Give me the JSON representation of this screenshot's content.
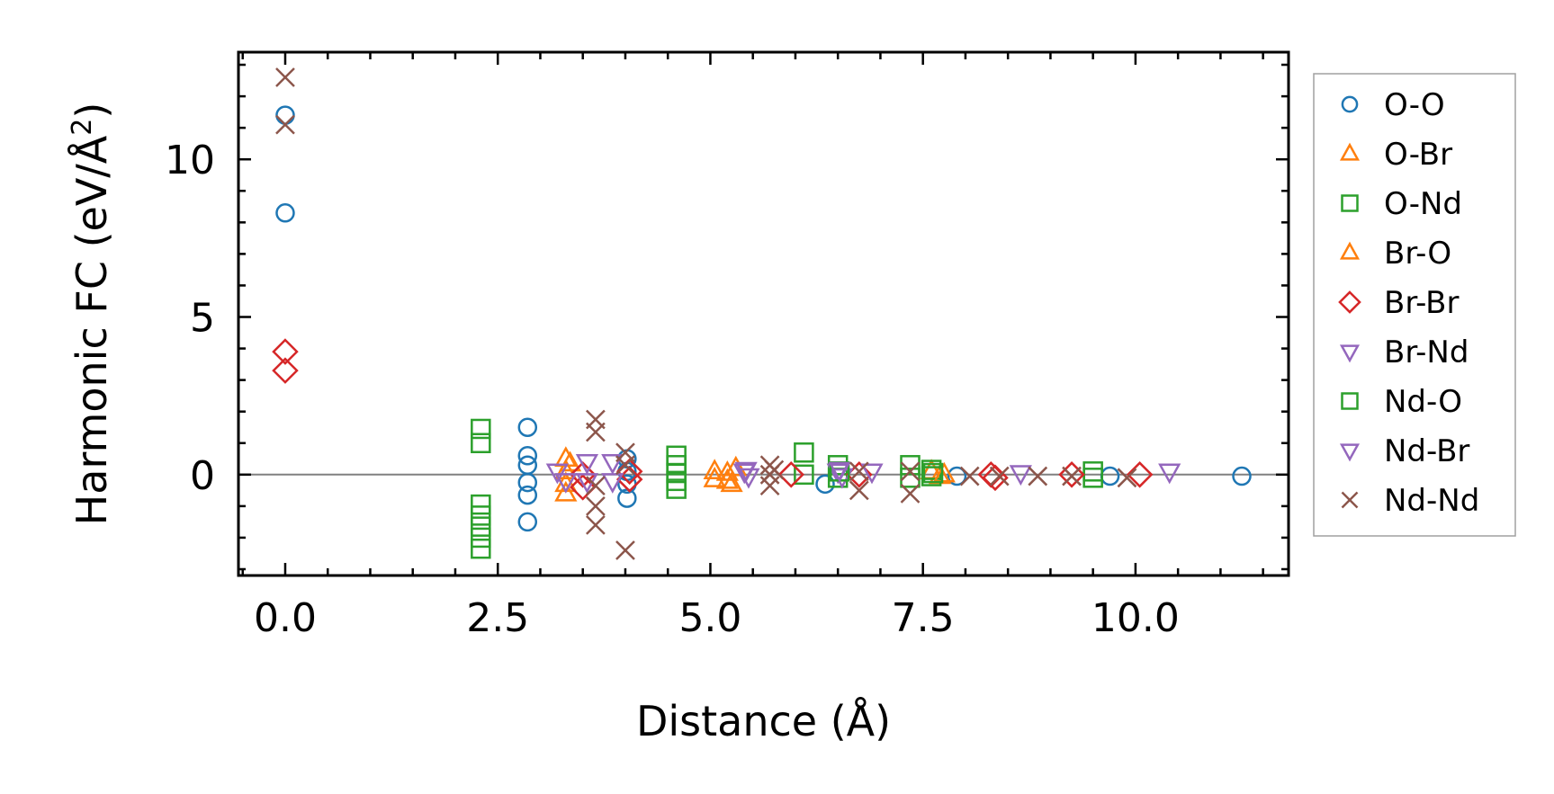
{
  "chart_data": {
    "type": "scatter",
    "xlabel": "Distance (Å)",
    "ylabel_main": "Harmonic FC (eV/Å",
    "ylabel_sup": "2",
    "ylabel_close": ")",
    "xlim": [
      -0.55,
      11.8
    ],
    "ylim": [
      -3.2,
      13.4
    ],
    "xticks": [
      0.0,
      2.5,
      5.0,
      7.5,
      10.0
    ],
    "xtick_labels": [
      "0.0",
      "2.5",
      "5.0",
      "7.5",
      "10.0"
    ],
    "yticks": [
      0,
      5,
      10
    ],
    "ytick_labels": [
      "0",
      "5",
      "10"
    ],
    "zero_line": true,
    "grid": false,
    "legend_position": "outside-right",
    "series": [
      {
        "name": "O-O",
        "marker": "circle",
        "color": "#1f77b4",
        "points": [
          [
            0.0,
            11.4
          ],
          [
            0.0,
            8.3
          ],
          [
            2.85,
            1.5
          ],
          [
            2.85,
            0.6
          ],
          [
            2.85,
            0.3
          ],
          [
            2.85,
            -0.25
          ],
          [
            2.85,
            -0.65
          ],
          [
            2.85,
            -1.5
          ],
          [
            4.02,
            0.5
          ],
          [
            4.02,
            0.1
          ],
          [
            4.02,
            -0.3
          ],
          [
            4.02,
            -0.75
          ],
          [
            6.35,
            -0.3
          ],
          [
            7.9,
            -0.05
          ],
          [
            9.7,
            -0.05
          ],
          [
            11.25,
            -0.05
          ]
        ]
      },
      {
        "name": "O-Br",
        "marker": "triangle-up",
        "color": "#ff7f0e",
        "points": [
          [
            3.3,
            0.5
          ],
          [
            3.3,
            0.1
          ],
          [
            3.3,
            -0.3
          ],
          [
            3.3,
            -0.6
          ],
          [
            5.05,
            0.1
          ],
          [
            5.05,
            -0.15
          ],
          [
            5.2,
            0.05
          ],
          [
            5.2,
            -0.2
          ],
          [
            5.25,
            -0.3
          ],
          [
            7.6,
            0.1
          ],
          [
            7.7,
            -0.05
          ]
        ]
      },
      {
        "name": "O-Nd",
        "marker": "square",
        "color": "#2ca02c",
        "points": [
          [
            2.3,
            1.45
          ],
          [
            2.3,
            1.0
          ],
          [
            2.3,
            -0.95
          ],
          [
            2.3,
            -1.3
          ],
          [
            2.3,
            -1.65
          ],
          [
            2.3,
            -2.0
          ],
          [
            2.3,
            -2.35
          ],
          [
            4.6,
            0.6
          ],
          [
            4.6,
            0.3
          ],
          [
            4.6,
            0.05
          ],
          [
            4.6,
            -0.2
          ],
          [
            4.6,
            -0.45
          ],
          [
            6.1,
            0.7
          ],
          [
            6.1,
            0.0
          ],
          [
            6.5,
            0.3
          ],
          [
            6.5,
            -0.1
          ],
          [
            7.35,
            0.3
          ],
          [
            7.35,
            -0.1
          ],
          [
            7.6,
            0.15
          ],
          [
            7.6,
            -0.05
          ],
          [
            9.5,
            0.1
          ],
          [
            9.5,
            -0.1
          ]
        ]
      },
      {
        "name": "Br-O",
        "marker": "triangle-up",
        "color": "#ff7f0e",
        "points": [
          [
            3.35,
            0.35
          ],
          [
            5.3,
            0.2
          ],
          [
            7.75,
            0.0
          ]
        ]
      },
      {
        "name": "Br-Br",
        "marker": "diamond",
        "color": "#d62728",
        "points": [
          [
            0.0,
            3.9
          ],
          [
            0.0,
            3.3
          ],
          [
            3.5,
            0.0
          ],
          [
            3.5,
            -0.4
          ],
          [
            4.05,
            0.1
          ],
          [
            4.05,
            -0.15
          ],
          [
            5.95,
            0.0
          ],
          [
            6.75,
            0.0
          ],
          [
            8.3,
            0.0
          ],
          [
            8.35,
            -0.1
          ],
          [
            9.25,
            0.0
          ],
          [
            10.05,
            0.0
          ]
        ]
      },
      {
        "name": "Br-Nd",
        "marker": "triangle-down",
        "color": "#9467bd",
        "points": [
          [
            3.2,
            0.1
          ],
          [
            3.3,
            -0.2
          ],
          [
            3.55,
            0.4
          ],
          [
            3.55,
            -0.2
          ],
          [
            3.85,
            0.4
          ],
          [
            3.85,
            -0.2
          ],
          [
            5.4,
            0.1
          ],
          [
            5.45,
            -0.05
          ],
          [
            6.5,
            0.1
          ],
          [
            6.55,
            -0.05
          ],
          [
            6.9,
            0.1
          ],
          [
            8.65,
            0.05
          ],
          [
            10.4,
            0.1
          ]
        ]
      },
      {
        "name": "Nd-O",
        "marker": "square",
        "color": "#2ca02c",
        "points": [
          [
            6.52,
            0.1
          ],
          [
            7.62,
            0.05
          ]
        ]
      },
      {
        "name": "Nd-Br",
        "marker": "triangle-down",
        "color": "#9467bd",
        "points": [
          [
            5.42,
            0.15
          ],
          [
            6.52,
            0.15
          ]
        ]
      },
      {
        "name": "Nd-Nd",
        "marker": "x",
        "color": "#8c564b",
        "points": [
          [
            0.0,
            12.6
          ],
          [
            0.0,
            11.1
          ],
          [
            3.65,
            1.75
          ],
          [
            3.65,
            1.35
          ],
          [
            3.65,
            -0.35
          ],
          [
            3.65,
            -1.0
          ],
          [
            3.65,
            -1.6
          ],
          [
            4.0,
            0.7
          ],
          [
            4.0,
            0.3
          ],
          [
            4.0,
            -2.4
          ],
          [
            5.7,
            0.3
          ],
          [
            5.7,
            0.0
          ],
          [
            5.7,
            -0.35
          ],
          [
            5.75,
            0.15
          ],
          [
            6.75,
            0.1
          ],
          [
            6.75,
            -0.5
          ],
          [
            7.35,
            0.1
          ],
          [
            7.35,
            -0.6
          ],
          [
            8.05,
            -0.05
          ],
          [
            8.4,
            -0.05
          ],
          [
            8.85,
            -0.05
          ],
          [
            9.25,
            -0.05
          ],
          [
            9.9,
            -0.1
          ]
        ]
      }
    ]
  }
}
